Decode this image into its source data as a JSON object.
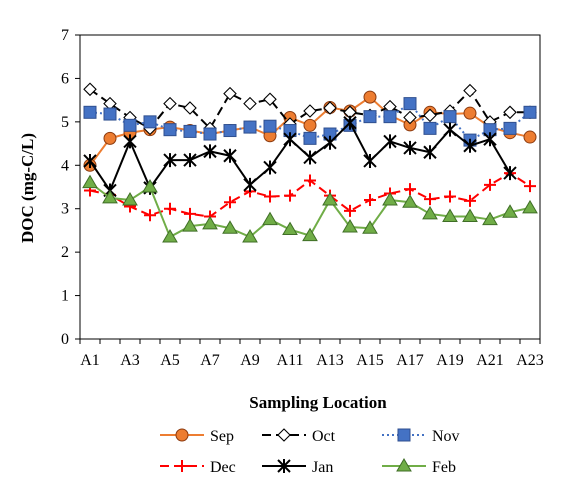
{
  "chart_data": {
    "type": "line",
    "xlabel": "Sampling Location",
    "ylabel": "DOC (mg-C/L)",
    "ylim": [
      0,
      7
    ],
    "yticks": [
      0,
      1,
      2,
      3,
      4,
      5,
      6,
      7
    ],
    "grid": false,
    "legend_position": "bottom",
    "categories": [
      "A1",
      "A2",
      "A3",
      "A4",
      "A5",
      "A6",
      "A7",
      "A8",
      "A9",
      "A10",
      "A11",
      "A12",
      "A13",
      "A14",
      "A15",
      "A16",
      "A17",
      "A18",
      "A19",
      "A20",
      "A21",
      "A22",
      "A23"
    ],
    "tick_labels": [
      "A1",
      "A3",
      "A5",
      "A7",
      "A9",
      "A11",
      "A13",
      "A15",
      "A17",
      "A19",
      "A21",
      "A23"
    ],
    "series": [
      {
        "name": "Sep",
        "color": "#ED7D31",
        "marker": "circle",
        "marker_fill": "#ED7D31",
        "dash": "solid",
        "values": [
          4.0,
          4.62,
          4.75,
          4.82,
          4.88,
          4.8,
          4.72,
          4.8,
          4.88,
          4.68,
          5.1,
          4.92,
          5.33,
          5.25,
          5.57,
          5.15,
          4.93,
          5.22,
          5.18,
          5.2,
          4.88,
          4.75,
          4.65
        ]
      },
      {
        "name": "Oct",
        "color": "#000000",
        "marker": "diamond",
        "marker_fill": "#ffffff",
        "dash": "dash",
        "values": [
          5.75,
          5.42,
          5.1,
          4.85,
          5.42,
          5.32,
          4.85,
          5.65,
          5.42,
          5.52,
          4.95,
          5.25,
          5.32,
          5.22,
          5.15,
          5.35,
          5.1,
          5.15,
          5.25,
          5.72,
          5.0,
          5.22,
          5.22
        ]
      },
      {
        "name": "Nov",
        "color": "#4472C4",
        "marker": "square",
        "marker_fill": "#4472C4",
        "dash": "dot",
        "values": [
          5.22,
          5.18,
          4.92,
          5.0,
          4.82,
          4.78,
          4.72,
          4.8,
          4.88,
          4.9,
          4.8,
          4.62,
          4.72,
          4.92,
          5.12,
          5.12,
          5.42,
          4.85,
          5.12,
          4.58,
          4.82,
          4.85,
          5.22
        ]
      },
      {
        "name": "Dec",
        "color": "#FF0000",
        "marker": "plus",
        "marker_fill": "none",
        "dash": "dash",
        "values": [
          3.42,
          3.32,
          3.05,
          2.85,
          3.0,
          2.88,
          2.82,
          3.15,
          3.4,
          3.28,
          3.3,
          3.65,
          3.3,
          2.95,
          3.2,
          3.35,
          3.45,
          3.22,
          3.28,
          3.18,
          3.55,
          3.82,
          3.52
        ]
      },
      {
        "name": "Jan",
        "color": "#000000",
        "marker": "asterisk",
        "marker_fill": "none",
        "dash": "solid",
        "values": [
          4.1,
          3.42,
          4.55,
          3.48,
          4.12,
          4.12,
          4.32,
          4.22,
          3.55,
          3.95,
          4.6,
          4.18,
          4.52,
          4.98,
          4.1,
          4.55,
          4.4,
          4.3,
          4.82,
          4.45,
          4.6,
          3.82,
          null
        ]
      },
      {
        "name": "Feb",
        "color": "#70AD47",
        "marker": "triangle",
        "marker_fill": "#70AD47",
        "dash": "solid",
        "values": [
          3.6,
          3.25,
          3.2,
          3.5,
          2.35,
          2.6,
          2.65,
          2.55,
          2.35,
          2.75,
          2.52,
          2.38,
          3.2,
          2.58,
          2.55,
          3.2,
          3.15,
          2.88,
          2.82,
          2.82,
          2.75,
          2.92,
          3.02
        ]
      }
    ]
  }
}
